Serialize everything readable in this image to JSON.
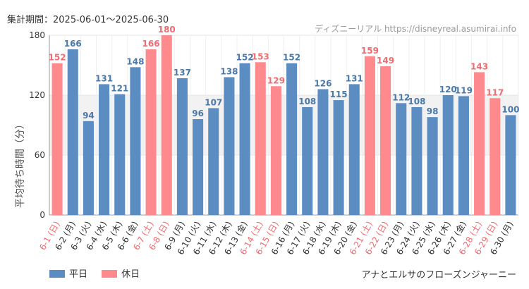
{
  "header": {
    "period_label": "集計期間：2025-06-01～2025-06-30",
    "source": "ディズニーリアル https://disneyreal.asumirai.info"
  },
  "footer": {
    "attraction": "アナとエルサのフローズンジャーニー"
  },
  "colors": {
    "weekday": "#5b8cc2",
    "holiday": "#ff8a8e",
    "weekday_label": "#4a78a8",
    "holiday_label": "#f06b70",
    "grid": "#e6e6e6",
    "band": "#f2f2f2"
  },
  "chart_data": {
    "type": "bar",
    "ylabel": "平均待ち時間（分）",
    "ylim": [
      0,
      180
    ],
    "yticks": [
      0,
      60,
      120,
      180
    ],
    "grid": true,
    "legend_position": "bottom-left",
    "legend": [
      {
        "key": "weekday",
        "label": "平日"
      },
      {
        "key": "holiday",
        "label": "休日"
      }
    ],
    "categories": [
      "6-1 (日)",
      "6-2 (月)",
      "6-3 (火)",
      "6-4 (水)",
      "6-5 (木)",
      "6-6 (金)",
      "6-7 (土)",
      "6-8 (日)",
      "6-9 (月)",
      "6-10 (火)",
      "6-11 (水)",
      "6-12 (木)",
      "6-13 (金)",
      "6-14 (土)",
      "6-15 (日)",
      "6-16 (月)",
      "6-17 (火)",
      "6-18 (水)",
      "6-19 (木)",
      "6-20 (金)",
      "6-21 (土)",
      "6-22 (日)",
      "6-23 (月)",
      "6-24 (火)",
      "6-25 (水)",
      "6-26 (木)",
      "6-27 (金)",
      "6-28 (土)",
      "6-29 (日)",
      "6-30 (月)"
    ],
    "values": [
      152,
      166,
      94,
      131,
      121,
      148,
      166,
      180,
      137,
      96,
      107,
      138,
      152,
      153,
      129,
      152,
      108,
      126,
      115,
      131,
      159,
      149,
      112,
      108,
      98,
      120,
      119,
      143,
      117,
      100
    ],
    "day_type": [
      "holiday",
      "weekday",
      "weekday",
      "weekday",
      "weekday",
      "weekday",
      "holiday",
      "holiday",
      "weekday",
      "weekday",
      "weekday",
      "weekday",
      "weekday",
      "holiday",
      "holiday",
      "weekday",
      "weekday",
      "weekday",
      "weekday",
      "weekday",
      "holiday",
      "holiday",
      "weekday",
      "weekday",
      "weekday",
      "weekday",
      "weekday",
      "holiday",
      "holiday",
      "weekday"
    ]
  }
}
